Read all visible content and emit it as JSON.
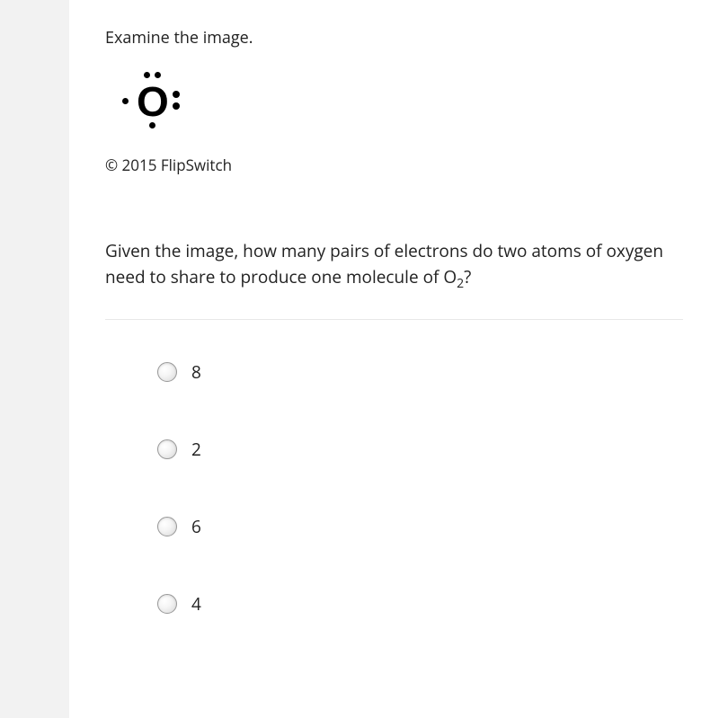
{
  "instruction": "Examine the image.",
  "lewis": {
    "atom": "O"
  },
  "copyright": "© 2015 FlipSwitch",
  "question_part1": "Given the image, how many pairs of electrons do two atoms of oxygen need to share to produce one molecule of O",
  "question_sub": "2",
  "question_part2": "?",
  "options": [
    {
      "label": "8"
    },
    {
      "label": "2"
    },
    {
      "label": "6"
    },
    {
      "label": "4"
    }
  ],
  "colors": {
    "gutter": "#f2f2f2",
    "text": "#222222",
    "divider": "#e8e8e8",
    "dot": "#000000"
  }
}
